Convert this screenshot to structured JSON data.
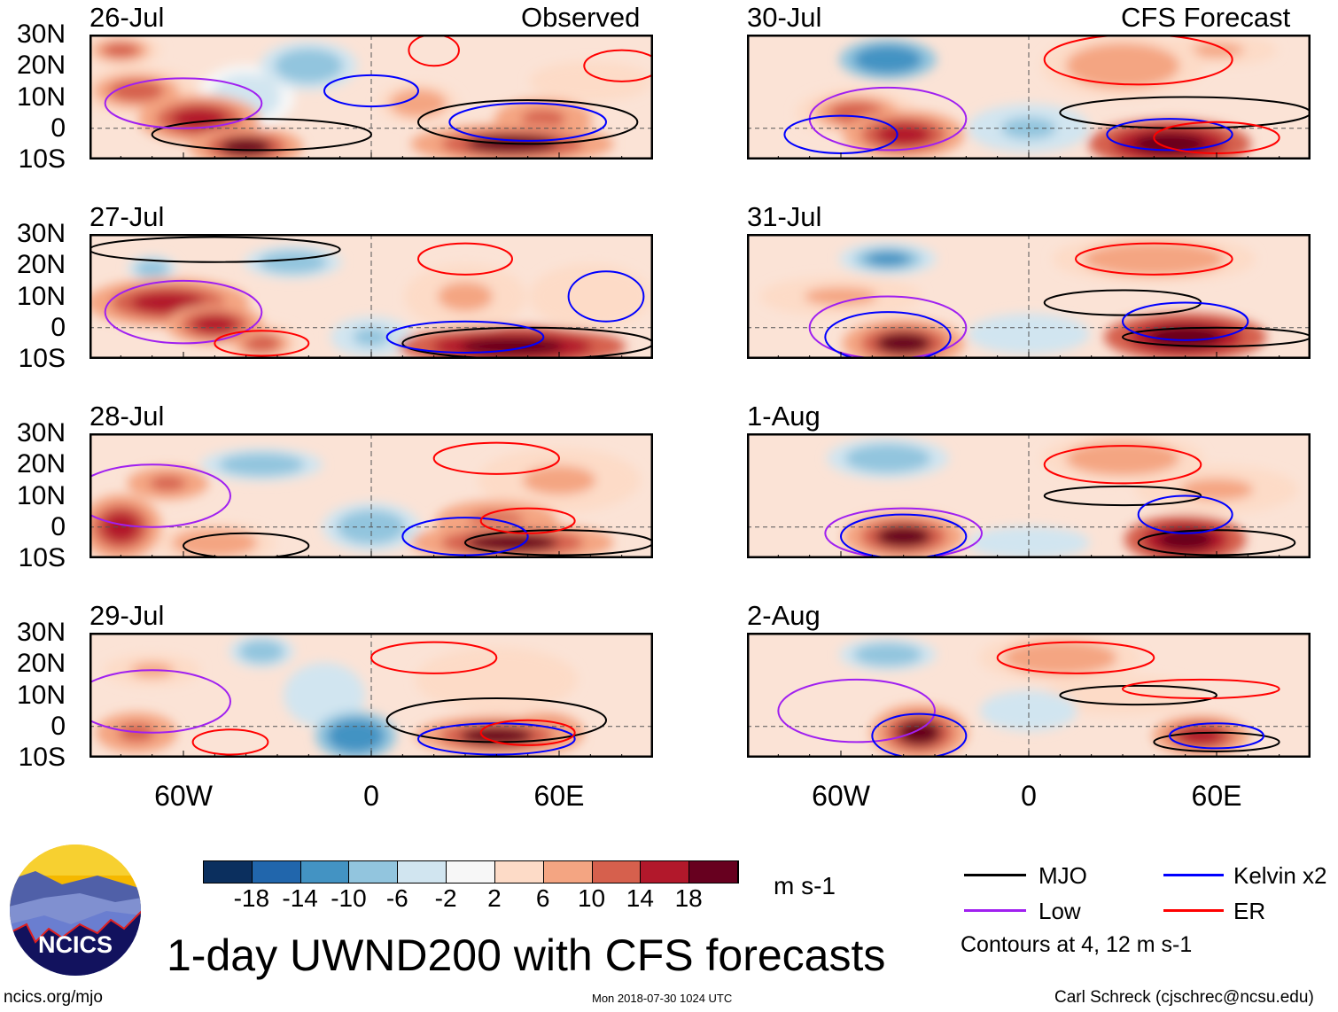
{
  "left_header": "Observed",
  "right_header": "CFS Forecast",
  "lat_labels": [
    "30N",
    "20N",
    "10N",
    "0",
    "10S"
  ],
  "lon_labels": [
    "60W",
    "0",
    "60E"
  ],
  "lon_label_values": [
    -60,
    0,
    60
  ],
  "lat_label_values": [
    30,
    20,
    10,
    0,
    -10
  ],
  "panels": [
    {
      "date": "26-Jul",
      "blobs": [
        [
          -75,
          12,
          15,
          6,
          10
        ],
        [
          -55,
          3,
          15,
          6,
          14
        ],
        [
          -40,
          -6,
          14,
          5,
          18
        ],
        [
          -20,
          20,
          12,
          6,
          -10
        ],
        [
          -40,
          10,
          12,
          8,
          -4
        ],
        [
          45,
          -5,
          25,
          5,
          18
        ],
        [
          55,
          3,
          12,
          5,
          12
        ],
        [
          15,
          8,
          10,
          5,
          8
        ],
        [
          70,
          15,
          15,
          5,
          4
        ],
        [
          -80,
          25,
          10,
          4,
          10
        ]
      ],
      "contours": [
        [
          "mjo",
          -35,
          -2,
          35,
          5
        ],
        [
          "mjo",
          50,
          2,
          35,
          7
        ],
        [
          "low",
          -60,
          8,
          25,
          8
        ],
        [
          "kelvin",
          50,
          2,
          25,
          6
        ],
        [
          "kelvin",
          0,
          12,
          15,
          5
        ],
        [
          "er",
          20,
          25,
          8,
          5
        ],
        [
          "er",
          80,
          20,
          12,
          5
        ]
      ]
    },
    {
      "date": "27-Jul",
      "blobs": [
        [
          -65,
          8,
          20,
          6,
          14
        ],
        [
          -50,
          1,
          12,
          5,
          16
        ],
        [
          -35,
          -5,
          10,
          5,
          10
        ],
        [
          -25,
          21,
          12,
          4,
          -10
        ],
        [
          -70,
          19,
          6,
          3,
          -10
        ],
        [
          0,
          -3,
          10,
          5,
          -8
        ],
        [
          45,
          -6,
          28,
          5,
          20
        ],
        [
          30,
          10,
          15,
          8,
          6
        ],
        [
          70,
          10,
          15,
          8,
          4
        ]
      ],
      "contours": [
        [
          "mjo",
          -50,
          25,
          40,
          4
        ],
        [
          "mjo",
          50,
          -5,
          40,
          5
        ],
        [
          "low",
          -60,
          5,
          25,
          10
        ],
        [
          "kelvin",
          30,
          -3,
          25,
          5
        ],
        [
          "kelvin",
          75,
          10,
          12,
          8
        ],
        [
          "er",
          -35,
          -5,
          15,
          4
        ],
        [
          "er",
          30,
          22,
          15,
          5
        ]
      ]
    },
    {
      "date": "28-Jul",
      "blobs": [
        [
          -80,
          0,
          10,
          8,
          14
        ],
        [
          -65,
          14,
          10,
          4,
          12
        ],
        [
          -35,
          20,
          15,
          4,
          -10
        ],
        [
          0,
          0,
          12,
          6,
          -10
        ],
        [
          45,
          -5,
          25,
          5,
          18
        ],
        [
          40,
          2,
          15,
          5,
          12
        ],
        [
          60,
          15,
          20,
          8,
          6
        ],
        [
          -50,
          -5,
          15,
          5,
          8
        ]
      ],
      "contours": [
        [
          "mjo",
          -40,
          -6,
          20,
          4
        ],
        [
          "mjo",
          60,
          -5,
          30,
          4
        ],
        [
          "low",
          -70,
          10,
          25,
          10
        ],
        [
          "kelvin",
          30,
          -3,
          20,
          6
        ],
        [
          "er",
          40,
          22,
          20,
          5
        ],
        [
          "er",
          50,
          2,
          15,
          4
        ]
      ]
    },
    {
      "date": "29-Jul",
      "blobs": [
        [
          -75,
          -2,
          10,
          5,
          12
        ],
        [
          -35,
          24,
          8,
          4,
          -10
        ],
        [
          -5,
          -3,
          10,
          6,
          -14
        ],
        [
          -15,
          10,
          10,
          8,
          -6
        ],
        [
          40,
          -3,
          20,
          5,
          18
        ],
        [
          55,
          -2,
          10,
          5,
          14
        ],
        [
          -70,
          18,
          12,
          4,
          6
        ],
        [
          40,
          15,
          20,
          8,
          4
        ]
      ],
      "contours": [
        [
          "mjo",
          40,
          2,
          35,
          7
        ],
        [
          "low",
          -70,
          8,
          25,
          10
        ],
        [
          "kelvin",
          40,
          -4,
          25,
          5
        ],
        [
          "er",
          20,
          22,
          20,
          5
        ],
        [
          "er",
          50,
          -2,
          15,
          4
        ],
        [
          "er",
          -45,
          -5,
          12,
          4
        ]
      ]
    },
    {
      "date": "30-Jul",
      "blobs": [
        [
          -45,
          22,
          12,
          5,
          -14
        ],
        [
          -40,
          -2,
          15,
          6,
          16
        ],
        [
          -55,
          5,
          15,
          6,
          10
        ],
        [
          45,
          -5,
          20,
          6,
          20
        ],
        [
          30,
          20,
          20,
          8,
          8
        ],
        [
          60,
          25,
          15,
          4,
          6
        ],
        [
          0,
          0,
          15,
          6,
          -8
        ]
      ],
      "contours": [
        [
          "mjo",
          50,
          5,
          40,
          5
        ],
        [
          "low",
          -45,
          3,
          25,
          10
        ],
        [
          "kelvin",
          -60,
          -2,
          18,
          6
        ],
        [
          "kelvin",
          45,
          -2,
          20,
          5
        ],
        [
          "er",
          35,
          22,
          30,
          8
        ],
        [
          "er",
          60,
          -3,
          20,
          5
        ]
      ]
    },
    {
      "date": "31-Jul",
      "blobs": [
        [
          -45,
          22,
          12,
          4,
          -12
        ],
        [
          -40,
          -5,
          15,
          6,
          18
        ],
        [
          50,
          -3,
          20,
          6,
          20
        ],
        [
          40,
          22,
          25,
          6,
          8
        ],
        [
          0,
          -2,
          15,
          5,
          -6
        ],
        [
          -60,
          10,
          20,
          5,
          6
        ]
      ],
      "contours": [
        [
          "mjo",
          30,
          8,
          25,
          4
        ],
        [
          "mjo",
          60,
          -3,
          30,
          3
        ],
        [
          "low",
          -45,
          0,
          25,
          10
        ],
        [
          "kelvin",
          -45,
          -3,
          20,
          8
        ],
        [
          "kelvin",
          50,
          2,
          20,
          6
        ],
        [
          "er",
          40,
          22,
          25,
          5
        ]
      ]
    },
    {
      "date": "1-Aug",
      "blobs": [
        [
          -45,
          22,
          15,
          5,
          -10
        ],
        [
          -40,
          -3,
          15,
          6,
          18
        ],
        [
          50,
          -4,
          15,
          6,
          20
        ],
        [
          30,
          22,
          20,
          6,
          8
        ],
        [
          0,
          -5,
          15,
          4,
          -6
        ],
        [
          60,
          12,
          20,
          6,
          6
        ]
      ],
      "contours": [
        [
          "mjo",
          30,
          10,
          25,
          3
        ],
        [
          "mjo",
          60,
          -5,
          25,
          4
        ],
        [
          "low",
          -40,
          -2,
          25,
          8
        ],
        [
          "kelvin",
          -40,
          -3,
          20,
          7
        ],
        [
          "kelvin",
          50,
          4,
          15,
          6
        ],
        [
          "er",
          30,
          20,
          25,
          6
        ]
      ]
    },
    {
      "date": "2-Aug",
      "blobs": [
        [
          -45,
          23,
          12,
          4,
          -10
        ],
        [
          -35,
          -2,
          12,
          7,
          18
        ],
        [
          55,
          -3,
          12,
          5,
          14
        ],
        [
          10,
          22,
          20,
          6,
          8
        ],
        [
          0,
          5,
          12,
          5,
          -6
        ],
        [
          30,
          10,
          20,
          5,
          4
        ]
      ],
      "contours": [
        [
          "mjo",
          35,
          10,
          25,
          3
        ],
        [
          "mjo",
          60,
          -5,
          20,
          3
        ],
        [
          "low",
          -55,
          5,
          25,
          10
        ],
        [
          "kelvin",
          -35,
          -3,
          15,
          7
        ],
        [
          "kelvin",
          60,
          -3,
          15,
          4
        ],
        [
          "er",
          15,
          22,
          25,
          5
        ],
        [
          "er",
          55,
          12,
          25,
          3
        ]
      ]
    }
  ],
  "colorbar": {
    "colors": [
      "#0b2f5e",
      "#2166ac",
      "#4393c3",
      "#92c5de",
      "#d1e5f0",
      "#f7f7f7",
      "#fddbc7",
      "#f4a582",
      "#d6604d",
      "#b2182b",
      "#67001f"
    ],
    "labels": [
      "-18",
      "-14",
      "-10",
      "-6",
      "-2",
      "2",
      "6",
      "10",
      "14",
      "18"
    ],
    "units": "m s-1"
  },
  "legend": {
    "items": [
      {
        "label": "MJO",
        "color": "#000000"
      },
      {
        "label": "Kelvin x2",
        "color": "#0000ff"
      },
      {
        "label": "Low",
        "color": "#a020f0"
      },
      {
        "label": "ER",
        "color": "#ff0000"
      }
    ],
    "note": "Contours at 4, 12 m s-1"
  },
  "title": "1-day UWND200 with CFS forecasts",
  "logo_text": "NCICS",
  "footer": {
    "url": "ncics.org/mjo",
    "timestamp": "Mon 2018-07-30 1024 UTC",
    "author": "Carl Schreck (cjschrec@ncsu.edu)"
  }
}
